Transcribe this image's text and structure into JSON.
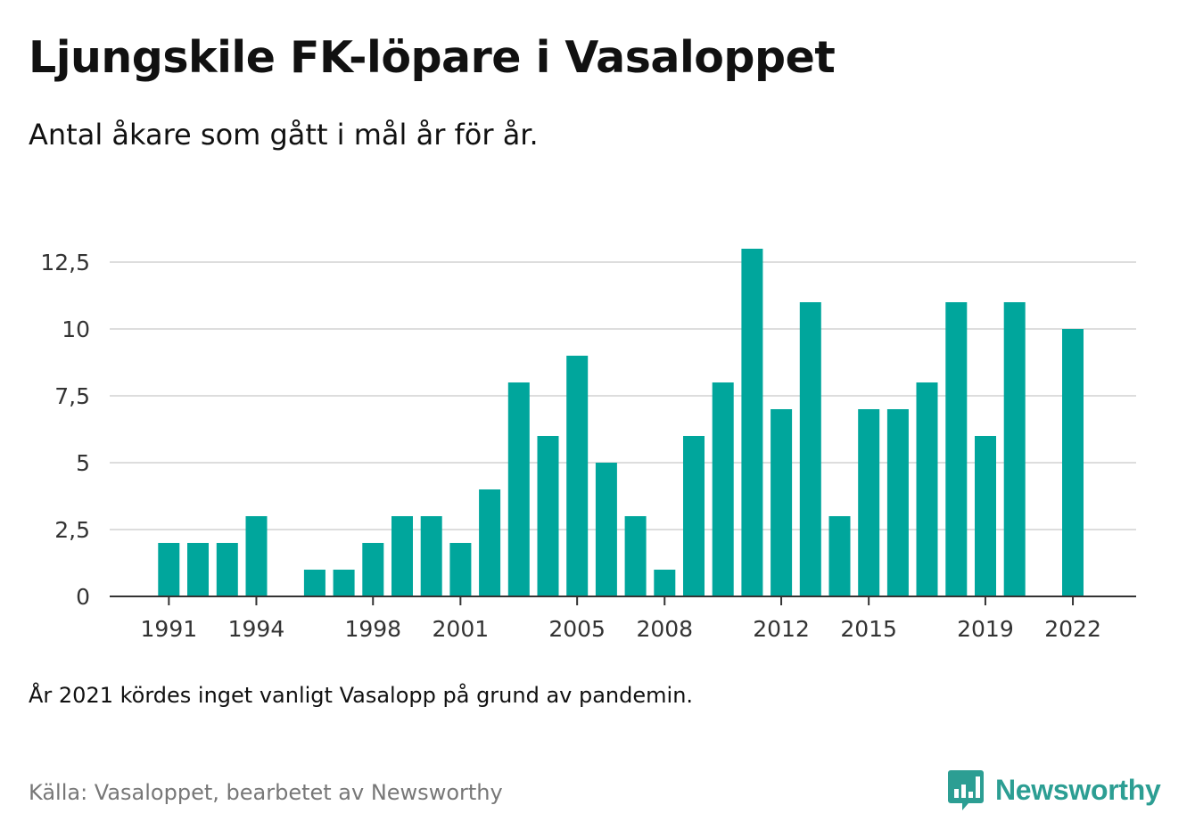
{
  "header": {
    "title": "Ljungskile FK-löpare i Vasaloppet",
    "subtitle": "Antal åkare som gått i mål år för år."
  },
  "footer": {
    "note": "År 2021 kördes inget vanligt Vasalopp på grund av pandemin.",
    "source": "Källa: Vasaloppet, bearbetet av Newsworthy",
    "logo_text": "Newsworthy"
  },
  "colors": {
    "bar": "#00a69c",
    "grid": "#dddddd",
    "axis": "#333333",
    "logo": "#2c9e93"
  },
  "chart_data": {
    "type": "bar",
    "title": "Ljungskile FK-löpare i Vasaloppet",
    "subtitle": "Antal åkare som gått i mål år för år.",
    "xlabel": "",
    "ylabel": "",
    "ylim": [
      0,
      13
    ],
    "yticks": [
      0,
      2.5,
      5,
      7.5,
      10,
      12.5
    ],
    "ytick_labels": [
      "0",
      "2,5",
      "5",
      "7,5",
      "10",
      "12,5"
    ],
    "xtick_labels": [
      1991,
      1994,
      1998,
      2001,
      2005,
      2008,
      2012,
      2015,
      2019,
      2022
    ],
    "grid": true,
    "categories": [
      1991,
      1992,
      1993,
      1994,
      1995,
      1996,
      1997,
      1998,
      1999,
      2000,
      2001,
      2002,
      2003,
      2004,
      2005,
      2006,
      2007,
      2008,
      2009,
      2010,
      2011,
      2012,
      2013,
      2014,
      2015,
      2016,
      2017,
      2018,
      2019,
      2020,
      2021,
      2022
    ],
    "values": [
      2,
      2,
      2,
      3,
      0,
      1,
      1,
      2,
      3,
      3,
      2,
      4,
      8,
      6,
      9,
      5,
      3,
      1,
      6,
      8,
      13,
      7,
      11,
      3,
      7,
      7,
      8,
      11,
      6,
      11,
      0,
      10
    ]
  }
}
